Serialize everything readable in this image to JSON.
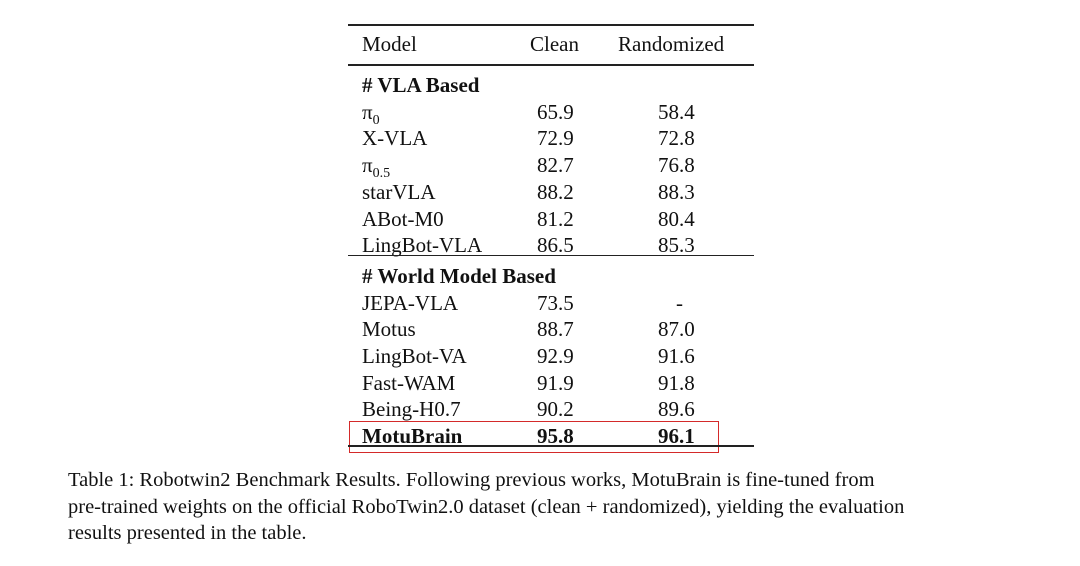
{
  "table": {
    "header": [
      "Model",
      "Clean",
      "Randomized"
    ],
    "sections": [
      {
        "title": "# VLA Based",
        "rows": [
          {
            "model": {
              "base": "π",
              "sub": "0"
            },
            "clean": "65.9",
            "randomized": "58.4"
          },
          {
            "model": {
              "base": "X-VLA"
            },
            "clean": "72.9",
            "randomized": "72.8"
          },
          {
            "model": {
              "base": "π",
              "sub": "0.5"
            },
            "clean": "82.7",
            "randomized": "76.8"
          },
          {
            "model": {
              "base": "starVLA"
            },
            "clean": "88.2",
            "randomized": "88.3"
          },
          {
            "model": {
              "base": "ABot-M0"
            },
            "clean": "81.2",
            "randomized": "80.4"
          },
          {
            "model": {
              "base": "LingBot-VLA"
            },
            "clean": "86.5",
            "randomized": "85.3"
          }
        ]
      },
      {
        "title": "# World Model Based",
        "rows": [
          {
            "model": {
              "base": "JEPA-VLA"
            },
            "clean": "73.5",
            "randomized": "-"
          },
          {
            "model": {
              "base": "Motus"
            },
            "clean": "88.7",
            "randomized": "87.0"
          },
          {
            "model": {
              "base": "LingBot-VA"
            },
            "clean": "92.9",
            "randomized": "91.6"
          },
          {
            "model": {
              "base": "Fast-WAM"
            },
            "clean": "91.9",
            "randomized": "91.8"
          },
          {
            "model": {
              "base": "Being-H0.7"
            },
            "clean": "90.2",
            "randomized": "89.6"
          },
          {
            "model": {
              "base": "MotuBrain"
            },
            "clean": "95.8",
            "randomized": "96.1",
            "bold": true,
            "boxed": true
          }
        ]
      }
    ]
  },
  "caption_lines": [
    "Table 1: Robotwin2 Benchmark Results. Following previous works, MotuBrain is fine-tuned from",
    "pre-trained weights on the official RoboTwin2.0 dataset (clean + randomized), yielding the evaluation",
    "results presented in the table."
  ]
}
